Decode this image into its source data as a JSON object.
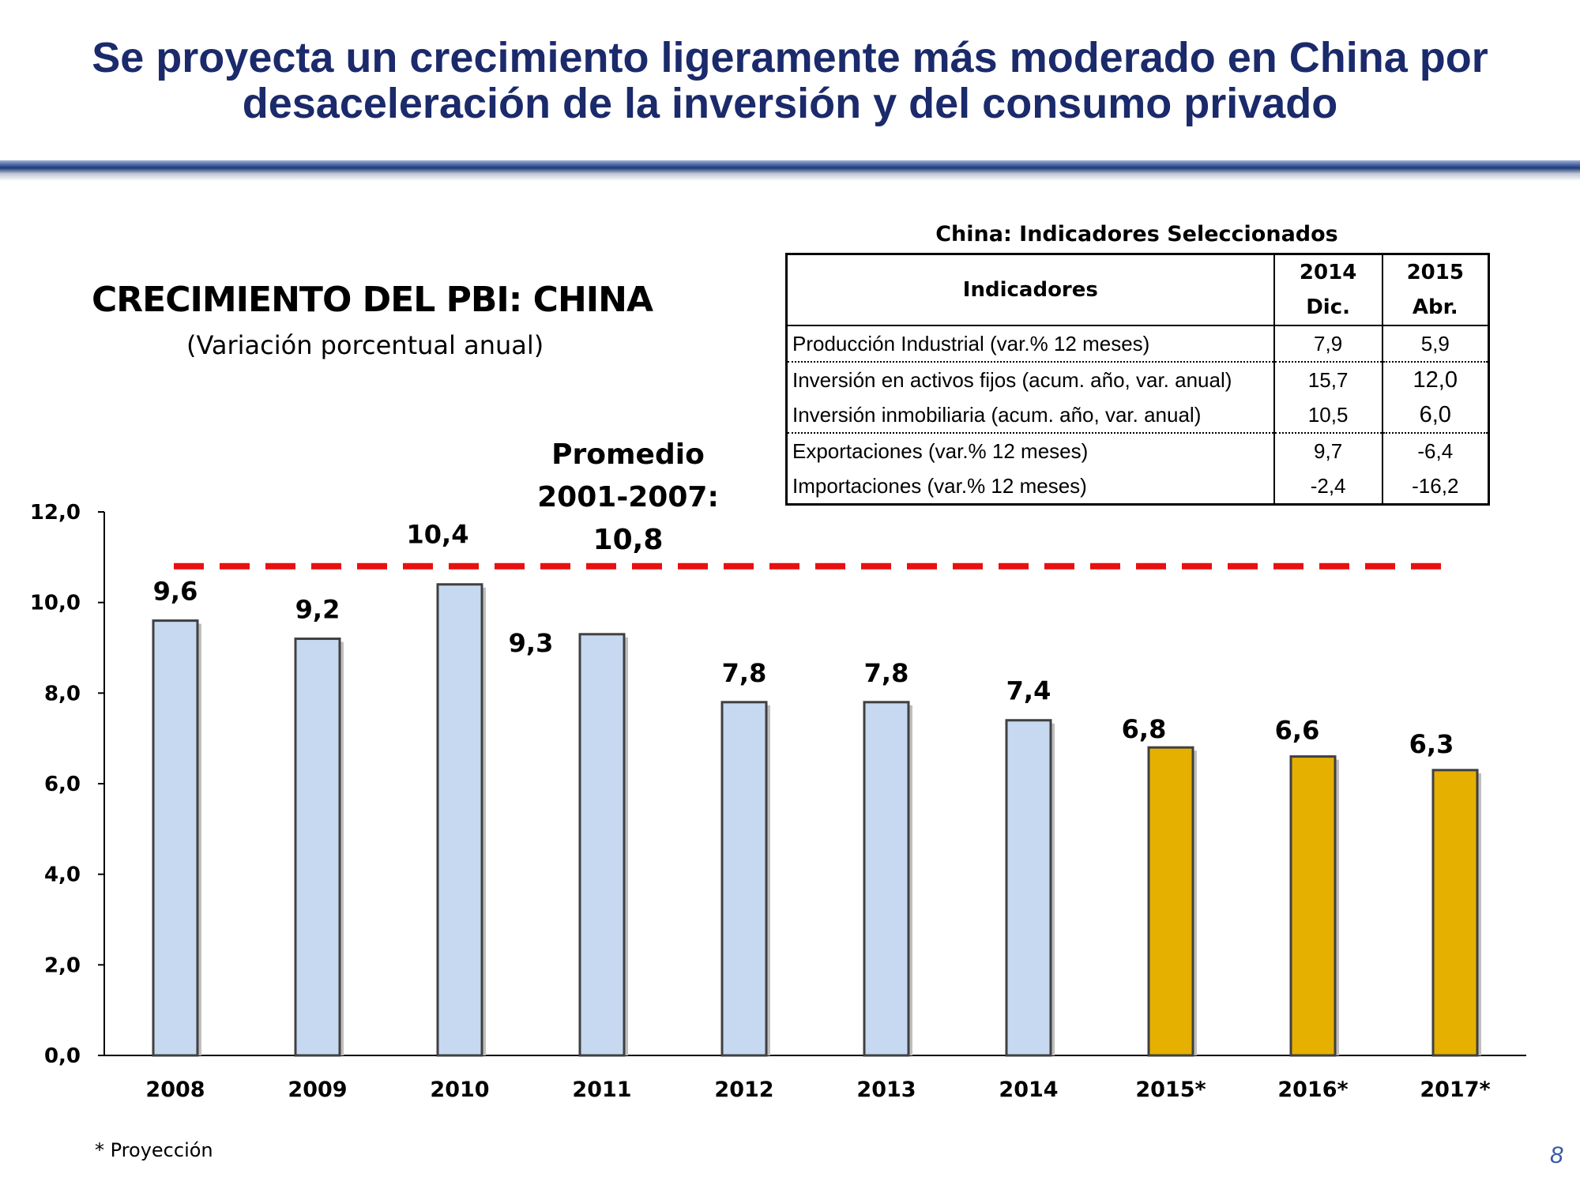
{
  "slide": {
    "title_line1": "Se proyecta un crecimiento ligeramente más moderado en China por",
    "title_line2": "desaceleración de la inversión y del consumo privado",
    "page_number": "8",
    "footnote": "* Proyección",
    "title_rule_color": "#1e3a78"
  },
  "chart_data": {
    "type": "bar",
    "title": "CRECIMIENTO DEL PBI: CHINA",
    "subtitle": "(Variación porcentual anual)",
    "categories": [
      "2008",
      "2009",
      "2010",
      "2011",
      "2012",
      "2013",
      "2014",
      "2015*",
      "2016*",
      "2017*"
    ],
    "values": [
      9.6,
      9.2,
      10.4,
      9.3,
      7.8,
      7.8,
      7.4,
      6.8,
      6.6,
      6.3
    ],
    "data_labels": [
      "9,6",
      "9,2",
      "10,4",
      "9,3",
      "7,8",
      "7,8",
      "7,4",
      "6,8",
      "6,6",
      "6,3"
    ],
    "projection": [
      false,
      false,
      false,
      false,
      false,
      false,
      false,
      true,
      true,
      true
    ],
    "bar_colors": {
      "actual": "#c6d9f1",
      "projection": "#e6b000",
      "outline": "#404040"
    },
    "ylim": [
      0,
      12
    ],
    "yticks": [
      0,
      2,
      4,
      6,
      8,
      10,
      12
    ],
    "ytick_labels": [
      "0,0",
      "2,0",
      "4,0",
      "6,0",
      "8,0",
      "10,0",
      "12,0"
    ],
    "average_line": {
      "value": 10.8,
      "label_line1": "Promedio",
      "label_line2": "2001-2007:",
      "label_line3": "10,8",
      "color": "#e81010",
      "style": "dashed"
    },
    "xlabel": "",
    "ylabel": "",
    "grid": false,
    "legend": "none"
  },
  "indicators_table": {
    "title": "China: Indicadores Seleccionados",
    "header": {
      "indicator": "Indicadores",
      "col1_year": "2014",
      "col1_period": "Dic.",
      "col2_year": "2015",
      "col2_period": "Abr."
    },
    "rows": [
      {
        "label": "Producción Industrial (var.% 12 meses)",
        "v2014": "7,9",
        "v2015": "5,9"
      },
      {
        "label": "Inversión en activos fijos (acum. año, var. anual)",
        "v2014": "15,7",
        "v2015": "12,0"
      },
      {
        "label": "Inversión inmobiliaria (acum. año, var. anual)",
        "v2014": "10,5",
        "v2015": "6,0"
      },
      {
        "label": "Exportaciones (var.% 12 meses)",
        "v2014": "9,7",
        "v2015": "-6,4"
      },
      {
        "label": "Importaciones (var.% 12 meses)",
        "v2014": "-2,4",
        "v2015": "-16,2"
      }
    ]
  }
}
